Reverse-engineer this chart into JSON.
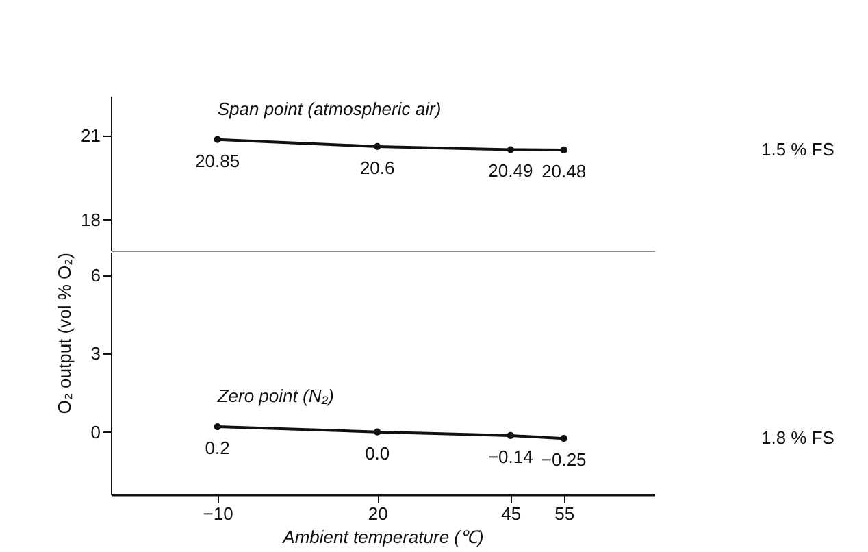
{
  "chart_data": [
    {
      "type": "line",
      "x": [
        -10,
        20,
        45,
        55
      ],
      "xlim": [
        -30,
        72
      ],
      "xticks": [
        -10,
        20,
        45,
        55
      ],
      "ylim": [
        16.9,
        22.4
      ],
      "yticks": [
        18,
        21
      ],
      "tick_labels": "y",
      "marker": "circle",
      "grid": false,
      "annotations": [
        "Span point (atmospheric air)",
        "1.5 % FS"
      ],
      "series": [
        {
          "color": "#111111",
          "values": [
            20.85,
            20.6,
            20.49,
            20.48
          ],
          "value_labels": [
            "20.85",
            "20.6",
            "20.49",
            "20.48"
          ]
        }
      ]
    },
    {
      "type": "line",
      "x": [
        -10,
        20,
        45,
        55
      ],
      "xlim": [
        -30,
        72
      ],
      "xticks": [
        -10,
        20,
        45,
        55
      ],
      "ylim": [
        -2.4,
        6.9
      ],
      "yticks": [
        0,
        3,
        6
      ],
      "marker": "circle",
      "grid": false,
      "xlabel": "Ambient temperature (℃)",
      "ylabel": "O₂ output (vol % O₂)",
      "annotations": [
        "Zero point (N₂)",
        "1.8 % FS"
      ],
      "series": [
        {
          "color": "#111111",
          "values": [
            0.2,
            0.0,
            -0.14,
            -0.25
          ],
          "value_labels": [
            "0.2",
            "0.0",
            "−0.14",
            "−0.25"
          ]
        }
      ]
    }
  ]
}
